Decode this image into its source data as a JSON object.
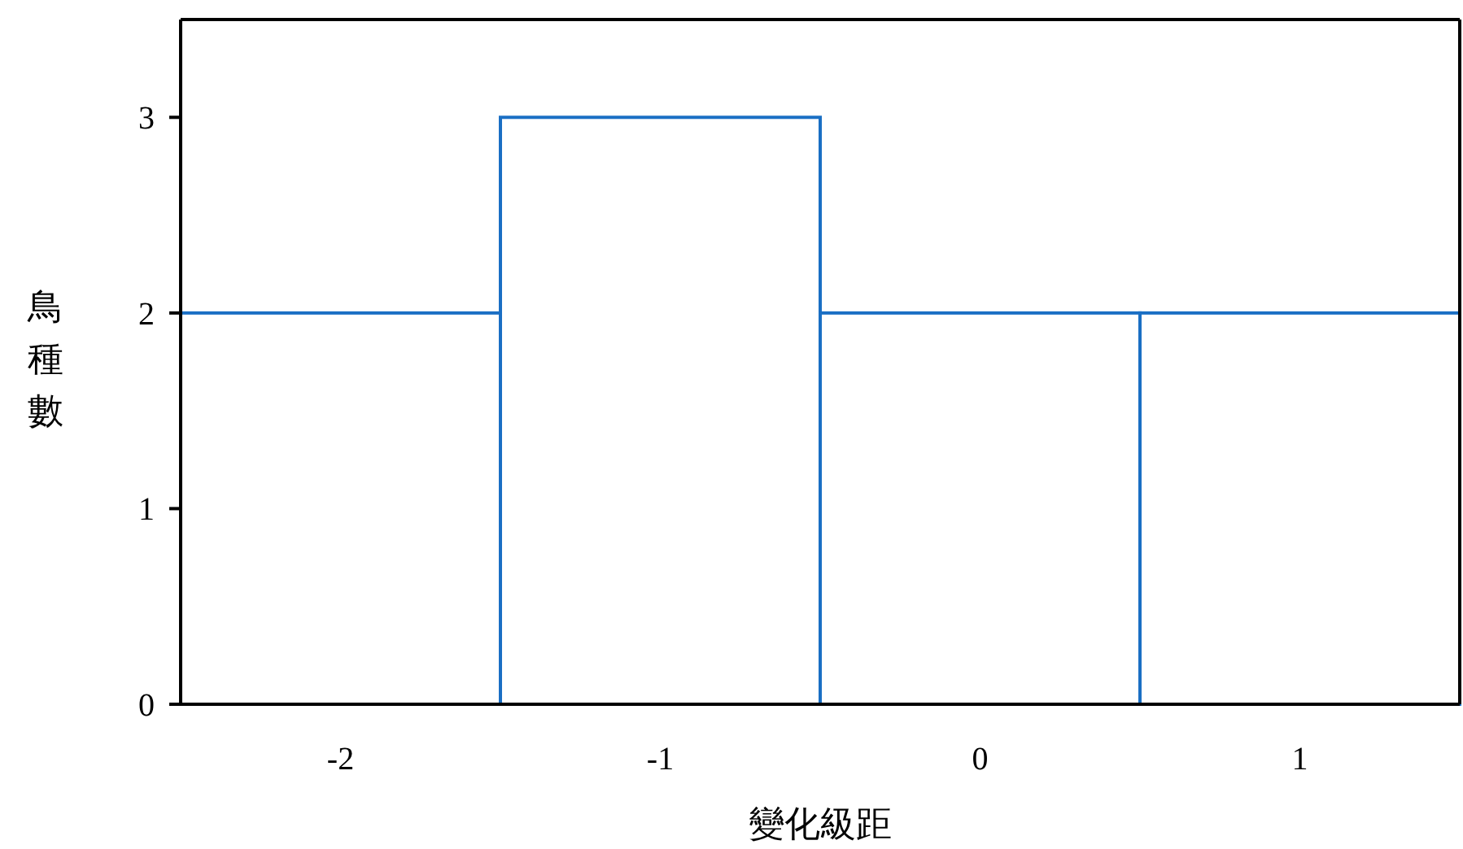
{
  "chart_data": {
    "type": "bar",
    "xlabel": "變化級距",
    "ylabel": "鳥種數",
    "categories": [
      "-2",
      "-1",
      "0",
      "1"
    ],
    "values": [
      2,
      3,
      2,
      2
    ],
    "color": "#1a6fc4",
    "ylim": [
      0,
      3.5
    ],
    "yticks": [
      0,
      1,
      2,
      3
    ]
  }
}
